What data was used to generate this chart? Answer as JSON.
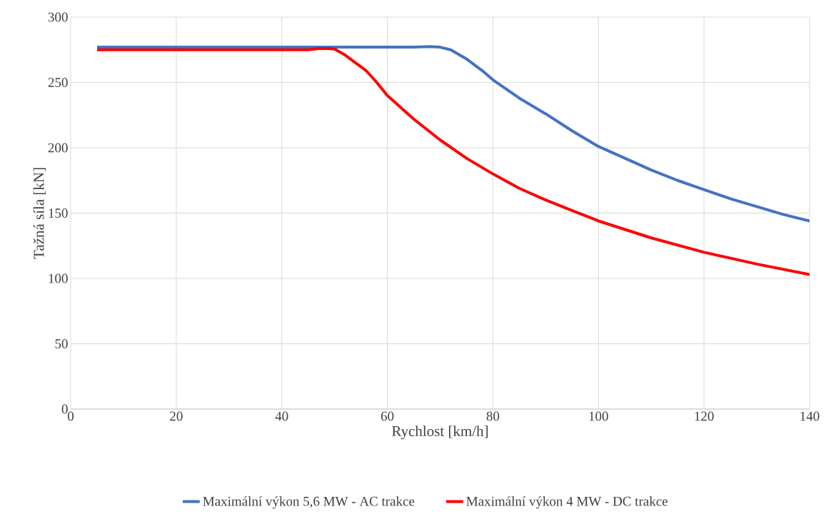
{
  "chart_data": {
    "type": "line",
    "xlabel": "Rychlost [km/h]",
    "ylabel": "Tažná síla [kN]",
    "xlim": [
      0,
      140
    ],
    "ylim": [
      0,
      300
    ],
    "xticks": [
      0,
      20,
      40,
      60,
      80,
      100,
      120,
      140
    ],
    "yticks": [
      0,
      50,
      100,
      150,
      200,
      250,
      300
    ],
    "grid": true,
    "legend": "bottom",
    "marker": "none",
    "line_style": "solid",
    "series": [
      {
        "name": "Maximální výkon 5,6 MW - AC trakce",
        "color": "#4472c4",
        "x": [
          5,
          20,
          40,
          60,
          65,
          68,
          70,
          72,
          75,
          78,
          80,
          85,
          90,
          95,
          100,
          105,
          110,
          115,
          120,
          125,
          130,
          135,
          140
        ],
        "values": [
          277,
          277,
          277,
          277,
          277,
          277.5,
          277,
          275,
          268,
          259,
          252,
          238,
          226,
          213,
          201,
          192,
          183,
          175,
          168,
          161,
          155,
          149,
          144
        ]
      },
      {
        "name": "Maximální výkon 4 MW - DC trakce",
        "color": "#ff0000",
        "x": [
          5,
          20,
          40,
          45,
          47,
          49,
          50,
          52,
          54,
          56,
          58,
          60,
          65,
          70,
          75,
          80,
          85,
          90,
          95,
          100,
          110,
          120,
          130,
          140
        ],
        "values": [
          275,
          275,
          275,
          275,
          276,
          276,
          275.5,
          271,
          265,
          259,
          250,
          240,
          222,
          206,
          192,
          180,
          169,
          160,
          152,
          144,
          131,
          120,
          111,
          103
        ]
      }
    ]
  }
}
